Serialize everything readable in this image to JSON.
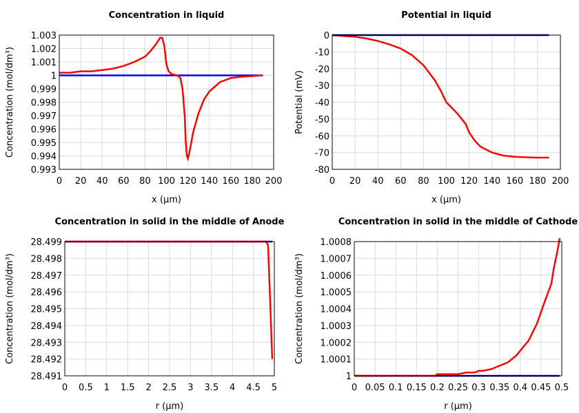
{
  "chart_data": [
    {
      "type": "line",
      "title": "Concentration in liquid",
      "x_label": "x (µm)",
      "y_label": "Concentration (mol/dm³)",
      "xlim": [
        0,
        200
      ],
      "xticks": [
        0,
        20,
        40,
        60,
        80,
        100,
        120,
        140,
        160,
        180,
        200
      ],
      "ylim": [
        0.993,
        1.003
      ],
      "yticks": [
        0.993,
        0.994,
        0.995,
        0.996,
        0.997,
        0.998,
        0.999,
        1,
        1.001,
        1.002,
        1.003
      ],
      "grid": true,
      "series": [
        {
          "color": "#0000ff",
          "x": [
            0,
            190
          ],
          "values": [
            1,
            1
          ]
        },
        {
          "color": "#ff0000",
          "x": [
            0,
            10,
            20,
            30,
            40,
            50,
            60,
            70,
            80,
            85,
            90,
            94,
            96,
            98,
            100,
            102,
            105,
            110,
            113,
            115,
            117,
            118,
            119,
            120,
            122,
            125,
            130,
            135,
            140,
            150,
            160,
            170,
            180,
            190
          ],
          "values": [
            1.0002,
            1.0002,
            1.0003,
            1.0003,
            1.0004,
            1.0005,
            1.0007,
            1.001,
            1.0014,
            1.0018,
            1.0023,
            1.0028,
            1.0028,
            1.0022,
            1.0008,
            1.0003,
            1.0001,
            1.0,
            0.9998,
            0.999,
            0.997,
            0.995,
            0.994,
            0.9938,
            0.9945,
            0.9958,
            0.9972,
            0.9982,
            0.9988,
            0.9995,
            0.9998,
            0.9999,
            0.99995,
            1.0
          ]
        }
      ]
    },
    {
      "type": "line",
      "title": "Potential in liquid",
      "x_label": "x (µm)",
      "y_label": "Potential (mV)",
      "xlim": [
        0,
        200
      ],
      "xticks": [
        0,
        20,
        40,
        60,
        80,
        100,
        120,
        140,
        160,
        180,
        200
      ],
      "ylim": [
        -80,
        0
      ],
      "yticks": [
        -80,
        -70,
        -60,
        -50,
        -40,
        -30,
        -20,
        -10,
        0
      ],
      "grid": true,
      "series": [
        {
          "color": "#ff0000",
          "x": [
            0,
            10,
            20,
            30,
            40,
            50,
            60,
            70,
            80,
            90,
            95,
            100,
            110,
            117,
            120,
            125,
            130,
            140,
            150,
            160,
            170,
            180,
            190
          ],
          "values": [
            0,
            -0.5,
            -1,
            -2,
            -3.5,
            -5.5,
            -8,
            -12,
            -18,
            -27,
            -33,
            -40,
            -47,
            -53,
            -58,
            -63,
            -66.5,
            -70,
            -71.8,
            -72.5,
            -72.8,
            -73,
            -73
          ]
        },
        {
          "color": "#00008b",
          "x": [
            0,
            190
          ],
          "values": [
            0,
            0
          ]
        }
      ]
    },
    {
      "type": "line",
      "title": "Concentration in solid in the middle of Anode",
      "x_label": "r (µm)",
      "y_label": "Concentration (mol/dm³)",
      "xlim": [
        0,
        5
      ],
      "xticks": [
        0,
        0.5,
        1,
        1.5,
        2,
        2.5,
        3,
        3.5,
        4,
        4.5,
        5
      ],
      "ylim": [
        28.491,
        28.499
      ],
      "yticks": [
        28.491,
        28.492,
        28.493,
        28.494,
        28.495,
        28.496,
        28.497,
        28.498,
        28.499
      ],
      "grid": true,
      "series": [
        {
          "color": "#0000ff",
          "x": [
            0,
            4.95
          ],
          "values": [
            28.499,
            28.499
          ]
        },
        {
          "color": "#ff0000",
          "x": [
            0,
            4.8,
            4.85,
            4.9,
            4.95
          ],
          "values": [
            28.499,
            28.499,
            28.4988,
            28.4955,
            28.492
          ]
        }
      ]
    },
    {
      "type": "line",
      "title": "Concentration in solid in the middle of Cathode",
      "x_label": "r (µm)",
      "y_label": "Concentration (mol/dm³)",
      "xlim": [
        0,
        0.5
      ],
      "xticks": [
        0,
        0.05,
        0.1,
        0.15,
        0.2,
        0.25,
        0.3,
        0.35,
        0.4,
        0.45,
        0.5
      ],
      "ylim": [
        1,
        1.0008
      ],
      "yticks": [
        1,
        1.0001,
        1.0002,
        1.0003,
        1.0004,
        1.0005,
        1.0006,
        1.0007,
        1.0008
      ],
      "grid": true,
      "series": [
        {
          "color": "#00008b",
          "x": [
            0,
            0.495
          ],
          "values": [
            1,
            1
          ]
        },
        {
          "color": "#ff0000",
          "x": [
            0,
            0.195,
            0.2,
            0.25,
            0.27,
            0.29,
            0.3,
            0.31,
            0.33,
            0.35,
            0.37,
            0.39,
            0.42,
            0.44,
            0.46,
            0.475,
            0.48,
            0.49,
            0.495
          ],
          "values": [
            1,
            1,
            1.00001,
            1.00001,
            1.00002,
            1.00002,
            1.00003,
            1.00003,
            1.00004,
            1.00006,
            1.00008,
            1.00012,
            1.00021,
            1.00031,
            1.00045,
            1.00055,
            1.00063,
            1.00075,
            1.00082
          ]
        }
      ]
    }
  ]
}
